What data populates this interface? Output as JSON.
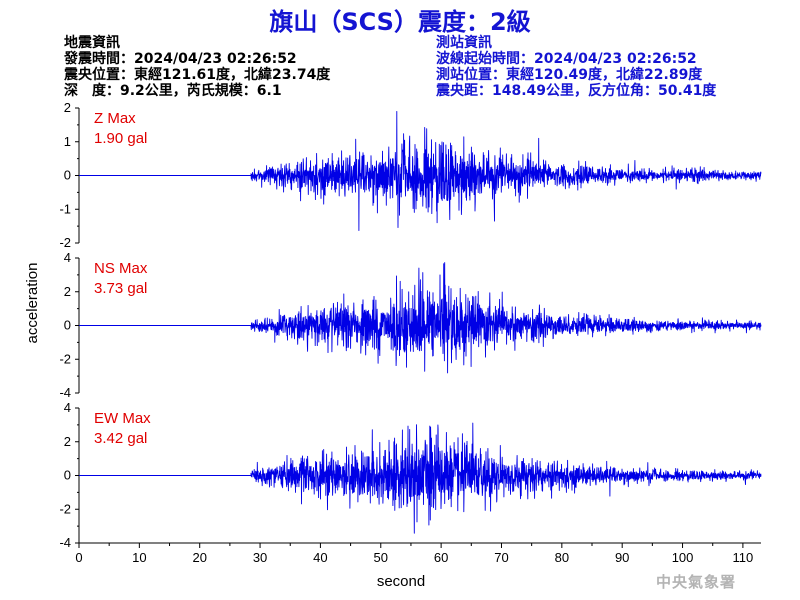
{
  "title": "旗山（SCS）震度：2級",
  "quake_info": {
    "heading": "地震資訊",
    "origin_time": "發震時間：2024/04/23 02:26:52",
    "epicenter": "震央位置：東經121.61度，北緯23.74度",
    "depth_magnitude": "深　度：9.2公里，芮氏規模：6.1"
  },
  "station_info": {
    "heading": "測站資訊",
    "wave_start": "波線起始時間：2024/04/23 02:26:52",
    "location": "測站位置：東經120.49度，北緯22.89度",
    "distance_azimuth": "震央距：148.49公里，反方位角：50.41度"
  },
  "agency": "中央氣象署",
  "chart_data": {
    "type": "line",
    "xlabel": "second",
    "ylabel": "acceleration",
    "xlim": [
      0,
      113
    ],
    "xticks": [
      "0",
      "10",
      "20",
      "30",
      "40",
      "50",
      "60",
      "70",
      "80",
      "90",
      "100",
      "110"
    ],
    "line_color": "#0000e6",
    "onset_time": 28.5,
    "panels": [
      {
        "component": "Z",
        "max_label": "Z Max",
        "max_value": "1.90 gal",
        "peak": 1.9,
        "ylim": [
          -2,
          2
        ],
        "yticks": [
          "2",
          "1",
          "0",
          "-1",
          "-2"
        ]
      },
      {
        "component": "NS",
        "max_label": "NS Max",
        "max_value": "3.73 gal",
        "peak": 3.73,
        "ylim": [
          -4,
          4
        ],
        "yticks": [
          "4",
          "2",
          "0",
          "-2",
          "-4"
        ]
      },
      {
        "component": "EW",
        "max_label": "EW Max",
        "max_value": "3.42 gal",
        "peak": 3.42,
        "ylim": [
          -4,
          4
        ],
        "yticks": [
          "4",
          "2",
          "0",
          "-2",
          "-4"
        ]
      }
    ]
  }
}
